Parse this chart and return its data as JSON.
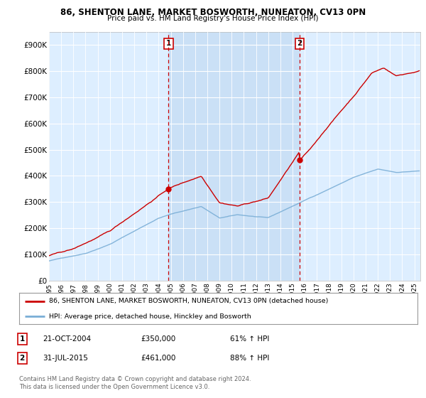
{
  "title": "86, SHENTON LANE, MARKET BOSWORTH, NUNEATON, CV13 0PN",
  "subtitle": "Price paid vs. HM Land Registry's House Price Index (HPI)",
  "ylim": [
    0,
    950000
  ],
  "yticks": [
    0,
    100000,
    200000,
    300000,
    400000,
    500000,
    600000,
    700000,
    800000,
    900000
  ],
  "ytick_labels": [
    "£0",
    "£100K",
    "£200K",
    "£300K",
    "£400K",
    "£500K",
    "£600K",
    "£700K",
    "£800K",
    "£900K"
  ],
  "property_color": "#cc0000",
  "hpi_color": "#7aaed6",
  "background_color": "#ddeeff",
  "shade_color": "#c8dff5",
  "annotation1": {
    "label": "1",
    "date_x": 2004.81,
    "y": 350000,
    "date_str": "21-OCT-2004",
    "price": "£350,000",
    "pct": "61% ↑ HPI"
  },
  "annotation2": {
    "label": "2",
    "date_x": 2015.58,
    "y": 461000,
    "date_str": "31-JUL-2015",
    "price": "£461,000",
    "pct": "88% ↑ HPI"
  },
  "legend_property": "86, SHENTON LANE, MARKET BOSWORTH, NUNEATON, CV13 0PN (detached house)",
  "legend_hpi": "HPI: Average price, detached house, Hinckley and Bosworth",
  "footer": "Contains HM Land Registry data © Crown copyright and database right 2024.\nThis data is licensed under the Open Government Licence v3.0.",
  "xmin": 1995,
  "xmax": 2025.5
}
